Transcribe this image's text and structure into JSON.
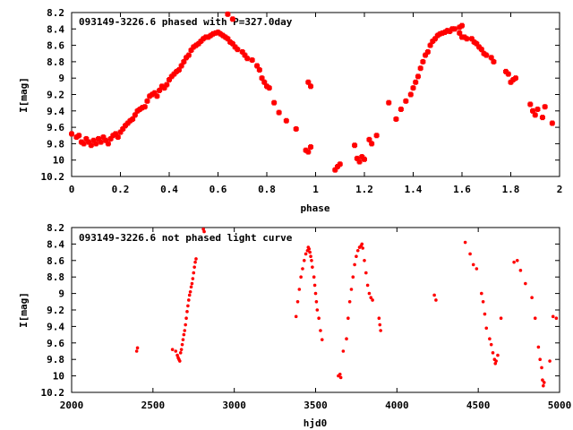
{
  "chart_data": [
    {
      "type": "scatter",
      "title": "093149-3226.6 phased with P=327.0day",
      "xlabel": "phase",
      "ylabel": "I[mag]",
      "xlim": [
        0,
        2
      ],
      "ylim": [
        10.2,
        8.2
      ],
      "y_inverted": true,
      "x_ticks": [
        "0",
        "0.2",
        "0.4",
        "0.6",
        "0.8",
        "1",
        "1.2",
        "1.4",
        "1.6",
        "1.8",
        "2"
      ],
      "y_ticks": [
        "8.2",
        "8.4",
        "8.6",
        "8.8",
        "9",
        "9.2",
        "9.4",
        "9.6",
        "9.8",
        "10",
        "10.2"
      ],
      "marker_color": "#ff0000",
      "marker": "star",
      "points": [
        [
          0.0,
          9.68
        ],
        [
          0.02,
          9.72
        ],
        [
          0.03,
          9.7
        ],
        [
          0.04,
          9.78
        ],
        [
          0.05,
          9.8
        ],
        [
          0.06,
          9.74
        ],
        [
          0.07,
          9.78
        ],
        [
          0.08,
          9.82
        ],
        [
          0.09,
          9.76
        ],
        [
          0.1,
          9.8
        ],
        [
          0.11,
          9.74
        ],
        [
          0.12,
          9.78
        ],
        [
          0.13,
          9.72
        ],
        [
          0.14,
          9.76
        ],
        [
          0.15,
          9.8
        ],
        [
          0.16,
          9.74
        ],
        [
          0.17,
          9.7
        ],
        [
          0.18,
          9.68
        ],
        [
          0.19,
          9.72
        ],
        [
          0.2,
          9.66
        ],
        [
          0.21,
          9.62
        ],
        [
          0.22,
          9.58
        ],
        [
          0.23,
          9.55
        ],
        [
          0.24,
          9.52
        ],
        [
          0.25,
          9.5
        ],
        [
          0.26,
          9.45
        ],
        [
          0.27,
          9.4
        ],
        [
          0.28,
          9.38
        ],
        [
          0.29,
          9.36
        ],
        [
          0.3,
          9.35
        ],
        [
          0.31,
          9.28
        ],
        [
          0.32,
          9.22
        ],
        [
          0.33,
          9.2
        ],
        [
          0.34,
          9.18
        ],
        [
          0.35,
          9.22
        ],
        [
          0.36,
          9.15
        ],
        [
          0.37,
          9.1
        ],
        [
          0.38,
          9.12
        ],
        [
          0.39,
          9.08
        ],
        [
          0.4,
          9.02
        ],
        [
          0.41,
          8.98
        ],
        [
          0.42,
          8.95
        ],
        [
          0.43,
          8.92
        ],
        [
          0.44,
          8.9
        ],
        [
          0.45,
          8.85
        ],
        [
          0.46,
          8.8
        ],
        [
          0.47,
          8.75
        ],
        [
          0.48,
          8.72
        ],
        [
          0.49,
          8.66
        ],
        [
          0.5,
          8.62
        ],
        [
          0.51,
          8.6
        ],
        [
          0.52,
          8.58
        ],
        [
          0.53,
          8.55
        ],
        [
          0.54,
          8.52
        ],
        [
          0.55,
          8.5
        ],
        [
          0.56,
          8.5
        ],
        [
          0.57,
          8.48
        ],
        [
          0.58,
          8.46
        ],
        [
          0.59,
          8.45
        ],
        [
          0.6,
          8.44
        ],
        [
          0.61,
          8.46
        ],
        [
          0.62,
          8.48
        ],
        [
          0.63,
          8.5
        ],
        [
          0.64,
          8.52
        ],
        [
          0.65,
          8.56
        ],
        [
          0.66,
          8.58
        ],
        [
          0.67,
          8.62
        ],
        [
          0.68,
          8.65
        ],
        [
          0.7,
          8.68
        ],
        [
          0.71,
          8.72
        ],
        [
          0.72,
          8.76
        ],
        [
          0.74,
          8.78
        ],
        [
          0.76,
          8.85
        ],
        [
          0.77,
          8.9
        ],
        [
          0.78,
          9.0
        ],
        [
          0.79,
          9.05
        ],
        [
          0.8,
          9.1
        ],
        [
          0.81,
          9.12
        ],
        [
          0.83,
          9.3
        ],
        [
          0.85,
          9.42
        ],
        [
          0.88,
          9.52
        ],
        [
          0.92,
          9.62
        ],
        [
          0.96,
          9.88
        ],
        [
          0.97,
          9.9
        ],
        [
          0.98,
          9.84
        ],
        [
          0.97,
          9.05
        ],
        [
          0.98,
          9.1
        ],
        [
          0.64,
          8.22
        ],
        [
          0.66,
          8.28
        ],
        [
          1.08,
          10.12
        ],
        [
          1.09,
          10.08
        ],
        [
          1.1,
          10.05
        ],
        [
          1.16,
          9.82
        ],
        [
          1.17,
          9.98
        ],
        [
          1.18,
          10.02
        ],
        [
          1.19,
          9.96
        ],
        [
          1.2,
          9.99
        ],
        [
          1.22,
          9.75
        ],
        [
          1.23,
          9.8
        ],
        [
          1.25,
          9.7
        ],
        [
          1.3,
          9.3
        ],
        [
          1.33,
          9.5
        ],
        [
          1.35,
          9.38
        ],
        [
          1.37,
          9.28
        ],
        [
          1.39,
          9.2
        ],
        [
          1.4,
          9.12
        ],
        [
          1.41,
          9.05
        ],
        [
          1.42,
          8.98
        ],
        [
          1.43,
          8.88
        ],
        [
          1.44,
          8.8
        ],
        [
          1.45,
          8.72
        ],
        [
          1.46,
          8.68
        ],
        [
          1.47,
          8.6
        ],
        [
          1.48,
          8.55
        ],
        [
          1.49,
          8.52
        ],
        [
          1.5,
          8.48
        ],
        [
          1.51,
          8.46
        ],
        [
          1.52,
          8.45
        ],
        [
          1.53,
          8.44
        ],
        [
          1.54,
          8.42
        ],
        [
          1.55,
          8.43
        ],
        [
          1.56,
          8.4
        ],
        [
          1.57,
          8.4
        ],
        [
          1.59,
          8.45
        ],
        [
          1.6,
          8.5
        ],
        [
          1.61,
          8.5
        ],
        [
          1.62,
          8.52
        ],
        [
          1.64,
          8.52
        ],
        [
          1.65,
          8.56
        ],
        [
          1.66,
          8.58
        ],
        [
          1.67,
          8.62
        ],
        [
          1.68,
          8.65
        ],
        [
          1.69,
          8.7
        ],
        [
          1.7,
          8.72
        ],
        [
          1.72,
          8.75
        ],
        [
          1.73,
          8.8
        ],
        [
          1.78,
          8.92
        ],
        [
          1.79,
          8.95
        ],
        [
          1.8,
          9.05
        ],
        [
          1.81,
          9.02
        ],
        [
          1.82,
          9.0
        ],
        [
          1.88,
          9.32
        ],
        [
          1.89,
          9.4
        ],
        [
          1.9,
          9.45
        ],
        [
          1.91,
          9.38
        ],
        [
          1.93,
          9.48
        ],
        [
          1.94,
          9.35
        ],
        [
          1.97,
          9.55
        ],
        [
          1.59,
          8.38
        ],
        [
          1.6,
          8.36
        ]
      ]
    },
    {
      "type": "scatter",
      "title": "093149-3226.6 not phased light curve",
      "xlabel": "hjd0",
      "ylabel": "I[mag]",
      "xlim": [
        2000,
        5000
      ],
      "ylim": [
        10.2,
        8.2
      ],
      "y_inverted": true,
      "x_ticks": [
        "2000",
        "2500",
        "3000",
        "3500",
        "4000",
        "4500",
        "5000"
      ],
      "y_ticks": [
        "8.2",
        "8.4",
        "8.6",
        "8.8",
        "9",
        "9.2",
        "9.4",
        "9.6",
        "9.8",
        "10",
        "10.2"
      ],
      "marker_color": "#ff0000",
      "marker": "dot",
      "points": [
        [
          2400,
          9.7
        ],
        [
          2405,
          9.66
        ],
        [
          2620,
          9.68
        ],
        [
          2640,
          9.7
        ],
        [
          2650,
          9.75
        ],
        [
          2655,
          9.78
        ],
        [
          2660,
          9.8
        ],
        [
          2665,
          9.82
        ],
        [
          2670,
          9.72
        ],
        [
          2675,
          9.68
        ],
        [
          2680,
          9.62
        ],
        [
          2685,
          9.56
        ],
        [
          2690,
          9.5
        ],
        [
          2695,
          9.45
        ],
        [
          2700,
          9.38
        ],
        [
          2705,
          9.3
        ],
        [
          2710,
          9.22
        ],
        [
          2715,
          9.15
        ],
        [
          2720,
          9.08
        ],
        [
          2725,
          9.02
        ],
        [
          2730,
          8.98
        ],
        [
          2735,
          8.92
        ],
        [
          2740,
          8.88
        ],
        [
          2745,
          8.82
        ],
        [
          2750,
          8.75
        ],
        [
          2755,
          8.68
        ],
        [
          2760,
          8.62
        ],
        [
          2765,
          8.58
        ],
        [
          2810,
          8.22
        ],
        [
          2815,
          8.25
        ],
        [
          3380,
          9.28
        ],
        [
          3390,
          9.1
        ],
        [
          3400,
          8.95
        ],
        [
          3410,
          8.8
        ],
        [
          3420,
          8.7
        ],
        [
          3430,
          8.6
        ],
        [
          3440,
          8.52
        ],
        [
          3450,
          8.48
        ],
        [
          3455,
          8.44
        ],
        [
          3460,
          8.46
        ],
        [
          3465,
          8.5
        ],
        [
          3470,
          8.55
        ],
        [
          3475,
          8.6
        ],
        [
          3480,
          8.68
        ],
        [
          3490,
          8.8
        ],
        [
          3495,
          8.9
        ],
        [
          3500,
          9.0
        ],
        [
          3505,
          9.1
        ],
        [
          3510,
          9.2
        ],
        [
          3520,
          9.3
        ],
        [
          3530,
          9.45
        ],
        [
          3540,
          9.56
        ],
        [
          3640,
          10.0
        ],
        [
          3650,
          9.98
        ],
        [
          3655,
          10.02
        ],
        [
          3670,
          9.7
        ],
        [
          3690,
          9.55
        ],
        [
          3700,
          9.3
        ],
        [
          3710,
          9.1
        ],
        [
          3720,
          8.95
        ],
        [
          3730,
          8.8
        ],
        [
          3740,
          8.65
        ],
        [
          3750,
          8.55
        ],
        [
          3760,
          8.48
        ],
        [
          3770,
          8.44
        ],
        [
          3780,
          8.42
        ],
        [
          3785,
          8.4
        ],
        [
          3790,
          8.45
        ],
        [
          3800,
          8.6
        ],
        [
          3810,
          8.75
        ],
        [
          3820,
          8.9
        ],
        [
          3830,
          9.0
        ],
        [
          3840,
          9.05
        ],
        [
          3850,
          9.08
        ],
        [
          3890,
          9.3
        ],
        [
          3895,
          9.38
        ],
        [
          3900,
          9.45
        ],
        [
          4230,
          9.02
        ],
        [
          4240,
          9.08
        ],
        [
          4420,
          8.38
        ],
        [
          4450,
          8.52
        ],
        [
          4470,
          8.65
        ],
        [
          4490,
          8.7
        ],
        [
          4520,
          9.0
        ],
        [
          4530,
          9.1
        ],
        [
          4540,
          9.25
        ],
        [
          4550,
          9.42
        ],
        [
          4570,
          9.55
        ],
        [
          4580,
          9.62
        ],
        [
          4590,
          9.72
        ],
        [
          4600,
          9.8
        ],
        [
          4605,
          9.85
        ],
        [
          4610,
          9.82
        ],
        [
          4620,
          9.75
        ],
        [
          4640,
          9.3
        ],
        [
          4720,
          8.62
        ],
        [
          4740,
          8.6
        ],
        [
          4760,
          8.72
        ],
        [
          4790,
          8.88
        ],
        [
          4830,
          9.05
        ],
        [
          4850,
          9.3
        ],
        [
          4870,
          9.65
        ],
        [
          4880,
          9.8
        ],
        [
          4890,
          9.9
        ],
        [
          4895,
          10.05
        ],
        [
          4900,
          10.12
        ],
        [
          4905,
          10.08
        ],
        [
          4940,
          9.82
        ],
        [
          4960,
          9.28
        ],
        [
          4980,
          9.3
        ]
      ]
    }
  ]
}
